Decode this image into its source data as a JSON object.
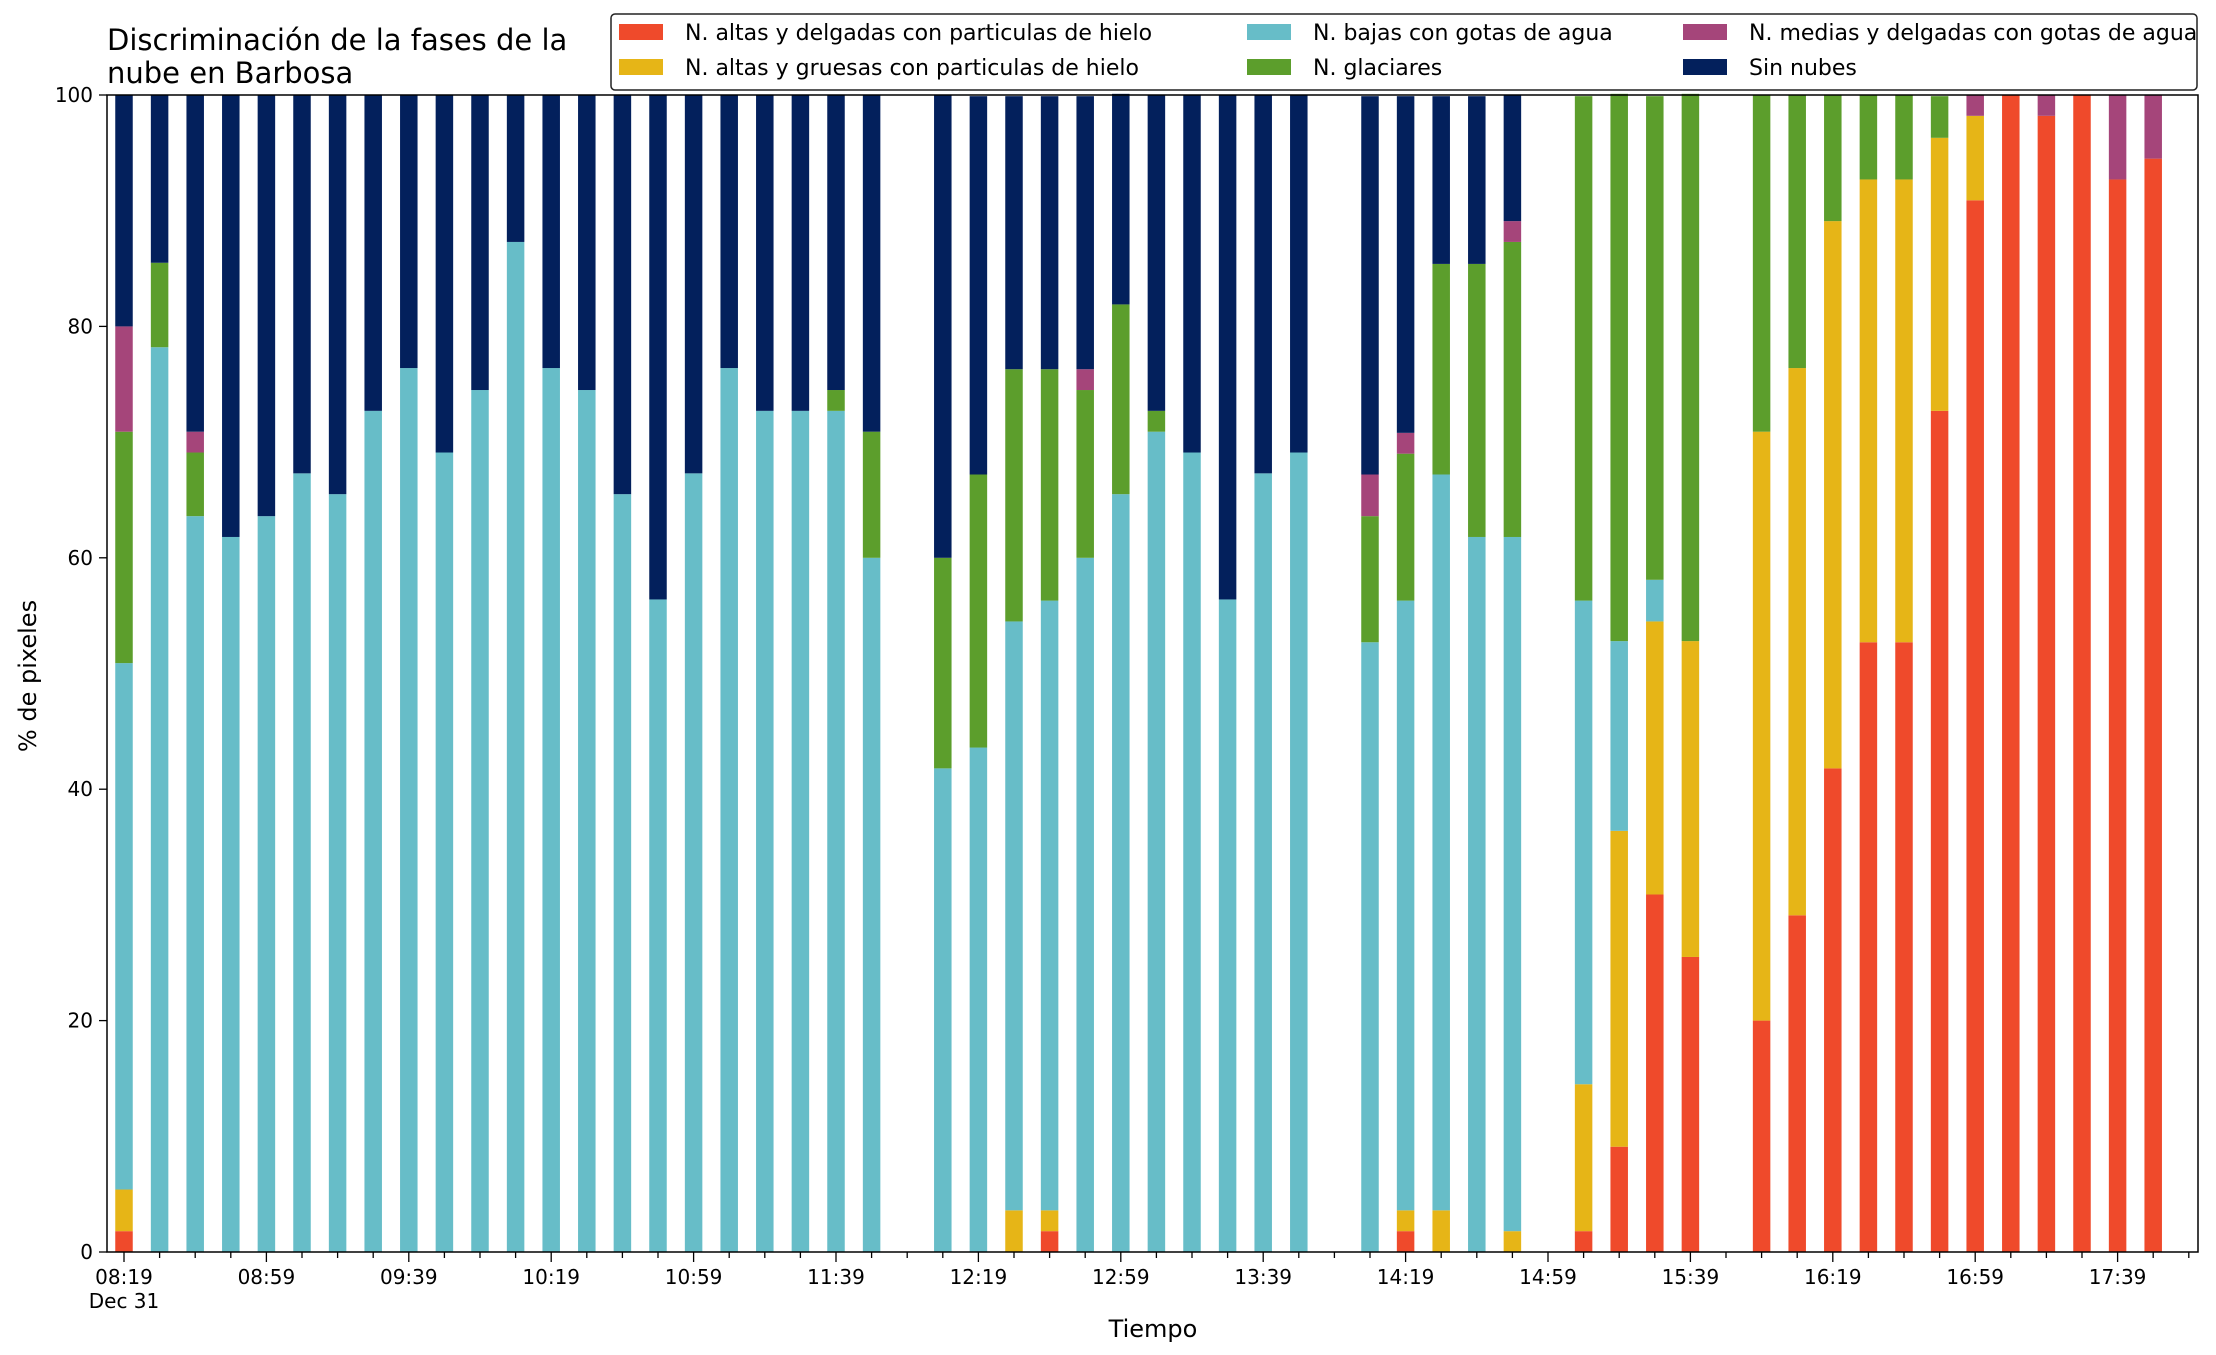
{
  "chart_data": {
    "type": "bar",
    "stacked": true,
    "title_lines": [
      "Discriminación de la fases de la",
      "nube en Barbosa"
    ],
    "xlabel": "Tiempo",
    "ylabel": "% de pixeles",
    "ylim": [
      0,
      100
    ],
    "yticks": [
      0,
      20,
      40,
      60,
      80,
      100
    ],
    "grid": false,
    "legend_position": "top-right",
    "x_start_time": "08:19",
    "x_interval_minutes": 10,
    "x_tick_labels": [
      "08:19",
      "08:59",
      "09:39",
      "10:19",
      "10:59",
      "11:39",
      "12:19",
      "12:59",
      "13:39",
      "14:19",
      "14:59",
      "15:39",
      "16:19",
      "16:59",
      "17:39"
    ],
    "x_date_label": "Dec 31",
    "series": [
      {
        "name": "N. altas y delgadas con particulas de hielo",
        "color": "#ef4a2b"
      },
      {
        "name": "N. altas y gruesas con particulas de hielo",
        "color": "#e6b517"
      },
      {
        "name": "N. bajas con gotas de agua",
        "color": "#67bdc8"
      },
      {
        "name": "N. glaciares",
        "color": "#5c9e2c"
      },
      {
        "name": "N. medias y delgadas con gotas de agua",
        "color": "#a5457a"
      },
      {
        "name": "Sin nubes",
        "color": "#03205c"
      }
    ],
    "bars": [
      {
        "time": "08:19",
        "values": [
          1.8,
          3.6,
          45.5,
          20,
          9.1,
          20
        ]
      },
      {
        "time": "08:29",
        "values": [
          0,
          0,
          78.2,
          7.3,
          0,
          14.5
        ]
      },
      {
        "time": "08:39",
        "values": [
          0,
          0,
          63.6,
          5.5,
          1.8,
          29.1
        ]
      },
      {
        "time": "08:49",
        "values": [
          0,
          0,
          61.8,
          0,
          0,
          38.2
        ]
      },
      {
        "time": "08:59",
        "values": [
          0,
          0,
          63.6,
          0,
          0,
          36.4
        ]
      },
      {
        "time": "09:09",
        "values": [
          0,
          0,
          67.3,
          0,
          0,
          32.7
        ]
      },
      {
        "time": "09:19",
        "values": [
          0,
          0,
          65.5,
          0,
          0,
          34.5
        ]
      },
      {
        "time": "09:29",
        "values": [
          0,
          0,
          72.7,
          0,
          0,
          27.3
        ]
      },
      {
        "time": "09:39",
        "values": [
          0,
          0,
          76.4,
          0,
          0,
          23.6
        ]
      },
      {
        "time": "09:49",
        "values": [
          0,
          0,
          69.1,
          0,
          0,
          30.9
        ]
      },
      {
        "time": "09:59",
        "values": [
          0,
          0,
          74.5,
          0,
          0,
          25.5
        ]
      },
      {
        "time": "10:09",
        "values": [
          0,
          0,
          87.3,
          0,
          0,
          12.7
        ]
      },
      {
        "time": "10:19",
        "values": [
          0,
          0,
          76.4,
          0,
          0,
          23.6
        ]
      },
      {
        "time": "10:29",
        "values": [
          0,
          0,
          74.5,
          0,
          0,
          25.5
        ]
      },
      {
        "time": "10:39",
        "values": [
          0,
          0,
          65.5,
          0,
          0,
          34.5
        ]
      },
      {
        "time": "10:49",
        "values": [
          0,
          0,
          56.4,
          0,
          0,
          43.6
        ]
      },
      {
        "time": "10:59",
        "values": [
          0,
          0,
          67.3,
          0,
          0,
          32.7
        ]
      },
      {
        "time": "11:09",
        "values": [
          0,
          0,
          76.4,
          0,
          0,
          23.6
        ]
      },
      {
        "time": "11:19",
        "values": [
          0,
          0,
          72.7,
          0,
          0,
          27.3
        ]
      },
      {
        "time": "11:29",
        "values": [
          0,
          0,
          72.7,
          0,
          0,
          27.3
        ]
      },
      {
        "time": "11:39",
        "values": [
          0,
          0,
          72.7,
          1.8,
          0,
          25.5
        ]
      },
      {
        "time": "11:49",
        "values": [
          0,
          0,
          60,
          10.9,
          0,
          29.1
        ]
      },
      {
        "time": "12:09",
        "values": [
          0,
          0,
          41.8,
          18.2,
          0,
          40
        ]
      },
      {
        "time": "12:19",
        "values": [
          0,
          0,
          43.6,
          23.6,
          0,
          32.7
        ]
      },
      {
        "time": "12:29",
        "values": [
          0,
          3.6,
          50.9,
          21.8,
          0,
          23.6
        ]
      },
      {
        "time": "12:39",
        "values": [
          1.8,
          1.8,
          52.7,
          20,
          0,
          23.6
        ]
      },
      {
        "time": "12:49",
        "values": [
          0,
          0,
          60,
          14.5,
          1.8,
          23.6
        ]
      },
      {
        "time": "12:59",
        "values": [
          0,
          0,
          65.5,
          16.4,
          0,
          18.2
        ]
      },
      {
        "time": "13:09",
        "values": [
          0,
          0,
          70.9,
          1.8,
          0,
          27.3
        ]
      },
      {
        "time": "13:19",
        "values": [
          0,
          0,
          69.1,
          0,
          0,
          30.9
        ]
      },
      {
        "time": "13:29",
        "values": [
          0,
          0,
          56.4,
          0,
          0,
          43.6
        ]
      },
      {
        "time": "13:39",
        "values": [
          0,
          0,
          67.3,
          0,
          0,
          32.7
        ]
      },
      {
        "time": "13:49",
        "values": [
          0,
          0,
          69.1,
          0,
          0,
          30.9
        ]
      },
      {
        "time": "14:09",
        "values": [
          0,
          0,
          52.7,
          10.9,
          3.6,
          32.7
        ]
      },
      {
        "time": "14:19",
        "values": [
          1.8,
          1.8,
          52.7,
          12.7,
          1.8,
          29.1
        ]
      },
      {
        "time": "14:29",
        "values": [
          0,
          3.6,
          63.6,
          18.2,
          0,
          14.5
        ]
      },
      {
        "time": "14:39",
        "values": [
          0,
          0,
          61.8,
          23.6,
          0,
          14.5
        ]
      },
      {
        "time": "14:49",
        "values": [
          0,
          1.8,
          60,
          25.5,
          1.8,
          10.9
        ]
      },
      {
        "time": "15:09",
        "values": [
          1.8,
          12.7,
          41.8,
          43.6,
          0,
          0
        ]
      },
      {
        "time": "15:19",
        "values": [
          9.1,
          27.3,
          16.4,
          47.3,
          0,
          0
        ]
      },
      {
        "time": "15:29",
        "values": [
          30.9,
          23.6,
          3.6,
          41.8,
          0,
          0
        ]
      },
      {
        "time": "15:39",
        "values": [
          25.5,
          27.3,
          0,
          47.3,
          0,
          0
        ]
      },
      {
        "time": "15:59",
        "values": [
          20,
          50.9,
          0,
          29.1,
          0,
          0
        ]
      },
      {
        "time": "16:09",
        "values": [
          29.1,
          47.3,
          0,
          23.6,
          0,
          0
        ]
      },
      {
        "time": "16:19",
        "values": [
          41.8,
          47.3,
          0,
          10.9,
          0,
          0
        ]
      },
      {
        "time": "16:29",
        "values": [
          52.7,
          40,
          0,
          7.3,
          0,
          0
        ]
      },
      {
        "time": "16:39",
        "values": [
          52.7,
          40,
          0,
          7.3,
          0,
          0
        ]
      },
      {
        "time": "16:49",
        "values": [
          72.7,
          23.6,
          0,
          3.6,
          0,
          0
        ]
      },
      {
        "time": "16:59",
        "values": [
          90.9,
          7.3,
          0,
          0,
          1.8,
          0
        ]
      },
      {
        "time": "17:09",
        "values": [
          100,
          0,
          0,
          0,
          0,
          0
        ]
      },
      {
        "time": "17:19",
        "values": [
          98.2,
          0,
          0,
          0,
          1.8,
          0
        ]
      },
      {
        "time": "17:29",
        "values": [
          100,
          0,
          0,
          0,
          0,
          0
        ]
      },
      {
        "time": "17:39",
        "values": [
          92.7,
          0,
          0,
          0,
          7.3,
          0
        ]
      },
      {
        "time": "17:49",
        "values": [
          94.5,
          0,
          0,
          0,
          5.5,
          0
        ]
      }
    ]
  }
}
